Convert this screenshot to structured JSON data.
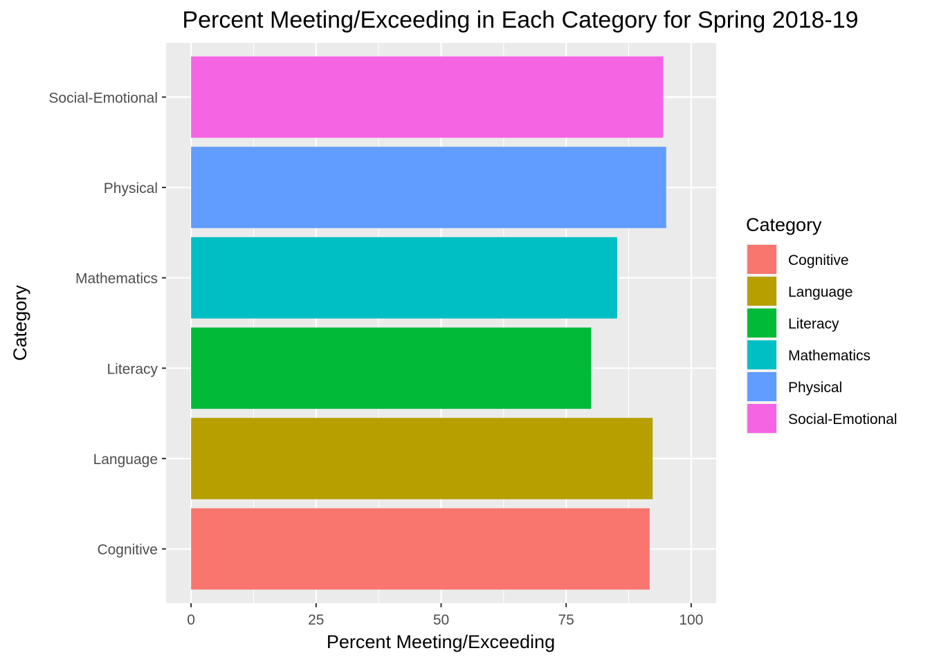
{
  "chart_data": {
    "type": "bar",
    "orientation": "horizontal",
    "title": "Percent Meeting/Exceeding in Each Category for Spring 2018-19",
    "xlabel": "Percent Meeting/Exceeding",
    "ylabel": "Category",
    "xlim": [
      -5,
      105
    ],
    "x_ticks": [
      0,
      25,
      50,
      75,
      100
    ],
    "grid": true,
    "categories": [
      "Cognitive",
      "Language",
      "Literacy",
      "Mathematics",
      "Physical",
      "Social-Emotional"
    ],
    "values": [
      91.7,
      92.3,
      80.0,
      85.2,
      95.0,
      94.4
    ],
    "colors": [
      "#F8766D",
      "#B79F00",
      "#00BA38",
      "#00BFC4",
      "#619CFF",
      "#F564E3"
    ],
    "legend": {
      "title": "Category",
      "placement": "right",
      "entries": [
        "Cognitive",
        "Language",
        "Literacy",
        "Mathematics",
        "Physical",
        "Social-Emotional"
      ]
    }
  }
}
